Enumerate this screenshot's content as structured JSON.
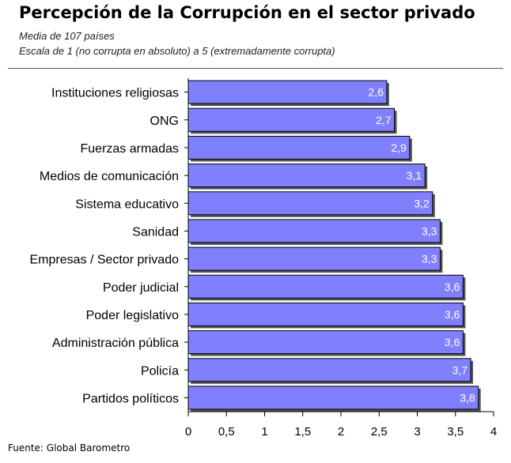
{
  "header": {
    "title": "Percepción de la Corrupción en el sector  privado",
    "subtitle_line1": "Media de 107 países",
    "subtitle_line2": "Escala de 1 (no corrupta en absoluto) a 5 (extremadamente corrupta)"
  },
  "footer": {
    "source": "Fuente: Global Barometro"
  },
  "colors": {
    "bar_fill": "#8080FF",
    "bar_stroke": "#000000",
    "bar_shadow": "#555555",
    "value_label": "#FFFFFF"
  },
  "chart_data": {
    "type": "bar",
    "orientation": "horizontal",
    "title": "Percepción de la Corrupción en el sector  privado",
    "xlabel": "",
    "ylabel": "",
    "xlim": [
      0,
      4
    ],
    "xticks": [
      0,
      0.5,
      1,
      1.5,
      2,
      2.5,
      3,
      3.5,
      4
    ],
    "xtick_labels": [
      "0",
      "0,5",
      "1",
      "1,5",
      "2",
      "2,5",
      "3",
      "3,5",
      "4"
    ],
    "grid": false,
    "legend": "none",
    "categories": [
      "Instituciones religiosas",
      "ONG",
      "Fuerzas armadas",
      "Medios de comunicación",
      "Sistema educativo",
      "Sanidad",
      "Empresas / Sector privado",
      "Poder judicial",
      "Poder legislativo",
      "Administración pública",
      "Policía",
      "Partidos políticos"
    ],
    "values": [
      2.6,
      2.7,
      2.9,
      3.1,
      3.2,
      3.3,
      3.3,
      3.6,
      3.6,
      3.6,
      3.7,
      3.8
    ],
    "value_labels": [
      "2,6",
      "2,7",
      "2,9",
      "3,1",
      "3,2",
      "3,3",
      "3,3",
      "3,6",
      "3,6",
      "3,6",
      "3,7",
      "3,8"
    ]
  }
}
